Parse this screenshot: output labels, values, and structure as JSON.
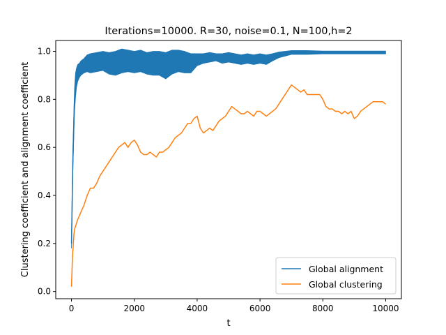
{
  "chart_data": {
    "type": "line",
    "title": "Iterations=10000. R=30, noise=0.1, N=100,h=2",
    "xlabel": "t",
    "ylabel": "Clustering coefficient and alignment coefficient",
    "xlim": [
      -500,
      10500
    ],
    "ylim": [
      -0.03,
      1.045
    ],
    "xticks": [
      0,
      2000,
      4000,
      6000,
      8000,
      10000
    ],
    "xtick_labels": [
      "0",
      "2000",
      "4000",
      "6000",
      "8000",
      "10000"
    ],
    "yticks": [
      0.0,
      0.2,
      0.4,
      0.6,
      0.8,
      1.0
    ],
    "ytick_labels": [
      "0.0",
      "0.2",
      "0.4",
      "0.6",
      "0.8",
      "1.0"
    ],
    "grid": false,
    "legend_position": "lower-right",
    "series": [
      {
        "name": "Global alignment",
        "color": "#1f77b4",
        "x": [
          0,
          20,
          40,
          60,
          80,
          100,
          130,
          160,
          200,
          250,
          300,
          400,
          500,
          600,
          800,
          1000,
          1200,
          1400,
          1600,
          1800,
          2000,
          2200,
          2400,
          2600,
          2800,
          3000,
          3200,
          3400,
          3600,
          3800,
          4000,
          4200,
          4400,
          4600,
          4800,
          5000,
          5200,
          5400,
          5600,
          5800,
          6000,
          6200,
          6400,
          6600,
          6800,
          7000,
          7500,
          8000,
          8500,
          9000,
          9500,
          10000
        ],
        "values": [
          0.2,
          0.35,
          0.52,
          0.62,
          0.72,
          0.8,
          0.86,
          0.89,
          0.91,
          0.92,
          0.93,
          0.94,
          0.95,
          0.95,
          0.955,
          0.96,
          0.95,
          0.95,
          0.96,
          0.96,
          0.955,
          0.96,
          0.95,
          0.95,
          0.95,
          0.94,
          0.955,
          0.96,
          0.955,
          0.95,
          0.965,
          0.97,
          0.975,
          0.975,
          0.97,
          0.975,
          0.97,
          0.965,
          0.97,
          0.965,
          0.97,
          0.965,
          0.975,
          0.985,
          0.99,
          0.995,
          0.995,
          0.995,
          0.995,
          0.995,
          0.995,
          0.995
        ],
        "band_width": [
          0.02,
          0.05,
          0.05,
          0.05,
          0.05,
          0.05,
          0.05,
          0.04,
          0.035,
          0.03,
          0.03,
          0.03,
          0.035,
          0.04,
          0.04,
          0.04,
          0.045,
          0.05,
          0.05,
          0.045,
          0.045,
          0.045,
          0.045,
          0.05,
          0.05,
          0.055,
          0.05,
          0.045,
          0.045,
          0.04,
          0.025,
          0.02,
          0.02,
          0.015,
          0.02,
          0.02,
          0.02,
          0.02,
          0.02,
          0.02,
          0.02,
          0.02,
          0.015,
          0.012,
          0.01,
          0.008,
          0.008,
          0.006,
          0.006,
          0.006,
          0.006,
          0.006
        ]
      },
      {
        "name": "Global clustering",
        "color": "#ff7f0e",
        "x": [
          0,
          10,
          20,
          40,
          60,
          80,
          100,
          150,
          200,
          300,
          400,
          500,
          600,
          700,
          800,
          900,
          1000,
          1100,
          1200,
          1300,
          1400,
          1500,
          1600,
          1700,
          1800,
          1900,
          2000,
          2100,
          2200,
          2300,
          2400,
          2500,
          2600,
          2700,
          2800,
          2900,
          3000,
          3100,
          3200,
          3300,
          3400,
          3500,
          3600,
          3700,
          3800,
          3900,
          4000,
          4100,
          4200,
          4300,
          4400,
          4500,
          4600,
          4700,
          4800,
          4900,
          5000,
          5100,
          5200,
          5300,
          5400,
          5500,
          5600,
          5700,
          5800,
          5900,
          6000,
          6100,
          6200,
          6300,
          6400,
          6500,
          6600,
          6700,
          6800,
          6900,
          7000,
          7100,
          7200,
          7300,
          7400,
          7500,
          7600,
          7700,
          7800,
          7900,
          8000,
          8100,
          8200,
          8300,
          8400,
          8500,
          8600,
          8700,
          8800,
          8900,
          9000,
          9100,
          9200,
          9300,
          9400,
          9500,
          9600,
          9700,
          9800,
          9900,
          10000
        ],
        "values": [
          0.02,
          0.06,
          0.1,
          0.16,
          0.2,
          0.24,
          0.26,
          0.28,
          0.3,
          0.33,
          0.36,
          0.4,
          0.43,
          0.43,
          0.45,
          0.48,
          0.5,
          0.52,
          0.54,
          0.56,
          0.58,
          0.6,
          0.61,
          0.62,
          0.6,
          0.62,
          0.63,
          0.61,
          0.58,
          0.57,
          0.57,
          0.58,
          0.57,
          0.56,
          0.58,
          0.58,
          0.59,
          0.6,
          0.62,
          0.64,
          0.65,
          0.66,
          0.68,
          0.7,
          0.7,
          0.72,
          0.73,
          0.68,
          0.66,
          0.67,
          0.68,
          0.67,
          0.69,
          0.71,
          0.72,
          0.73,
          0.75,
          0.77,
          0.76,
          0.75,
          0.74,
          0.74,
          0.75,
          0.74,
          0.73,
          0.75,
          0.75,
          0.74,
          0.73,
          0.74,
          0.75,
          0.76,
          0.78,
          0.8,
          0.82,
          0.84,
          0.86,
          0.85,
          0.84,
          0.83,
          0.84,
          0.82,
          0.82,
          0.82,
          0.82,
          0.82,
          0.8,
          0.77,
          0.76,
          0.76,
          0.75,
          0.75,
          0.74,
          0.75,
          0.74,
          0.75,
          0.72,
          0.73,
          0.75,
          0.76,
          0.77,
          0.78,
          0.79,
          0.79,
          0.79,
          0.79,
          0.78
        ]
      }
    ]
  }
}
